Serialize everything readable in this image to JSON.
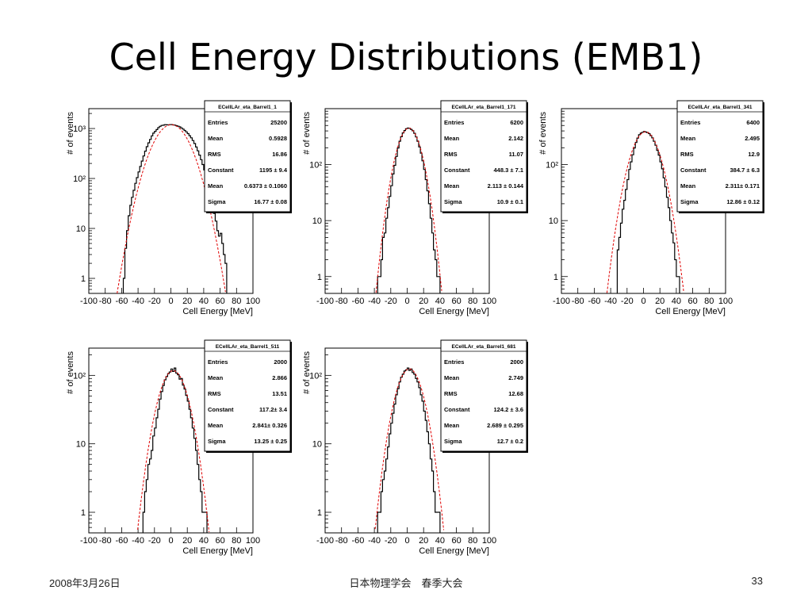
{
  "slide": {
    "title": "Cell Energy Distributions (EMB1)",
    "footer_date": "2008年3月26日",
    "footer_center": "日本物理学会　春季大会",
    "page_number": "33"
  },
  "chart_data": [
    {
      "type": "histogram",
      "name": "ECellLAr_eta_Barrel1_1",
      "xlabel": "Cell Energy [MeV]",
      "ylabel": "# of events",
      "xlim": [
        -100,
        100
      ],
      "ylim": [
        0.5,
        2500
      ],
      "yscale": "log",
      "xticks": [
        "-100",
        "-80",
        "-60",
        "-40",
        "-20",
        "0",
        "20",
        "40",
        "60",
        "80",
        "100"
      ],
      "yticks": [
        {
          "label": "1",
          "value": 1
        },
        {
          "label": "10",
          "value": 10
        },
        {
          "label": "10²",
          "value": 100
        },
        {
          "label": "10³",
          "value": 1000
        }
      ],
      "stats": [
        [
          "Entries",
          "25200"
        ],
        [
          "Mean",
          "0.5928"
        ],
        [
          "RMS",
          "16.86"
        ],
        [
          "Constant",
          "1195 ± 9.4"
        ],
        [
          "Mean",
          "0.6373 ± 0.1060"
        ],
        [
          "Sigma",
          "16.77 ± 0.08"
        ]
      ],
      "fit": {
        "constant": 1195,
        "mean": 0.6373,
        "sigma": 16.77
      },
      "x": [
        -57,
        -55,
        -53,
        -51,
        -49,
        -47,
        -45,
        -43,
        -41,
        -39,
        -37,
        -35,
        -33,
        -31,
        -29,
        -27,
        -25,
        -23,
        -21,
        -19,
        -17,
        -15,
        -13,
        -11,
        -9,
        -7,
        -5,
        -3,
        -1,
        1,
        3,
        5,
        7,
        9,
        11,
        13,
        15,
        17,
        19,
        21,
        23,
        25,
        27,
        29,
        31,
        33,
        35,
        37,
        39,
        41,
        43,
        45,
        47,
        49,
        51,
        53,
        55,
        57,
        59,
        61,
        63,
        65,
        67
      ],
      "values": [
        1,
        4,
        9,
        18,
        29,
        42,
        58,
        80,
        104,
        135,
        174,
        223,
        282,
        352,
        432,
        518,
        606,
        714,
        808,
        880,
        952,
        1040,
        1108,
        1150,
        1166,
        1196,
        1188,
        1182,
        1196,
        1200,
        1180,
        1168,
        1140,
        1110,
        1078,
        1030,
        975,
        916,
        856,
        790,
        720,
        651,
        576,
        500,
        426,
        358,
        294,
        238,
        190,
        148,
        112,
        83,
        60,
        42,
        29,
        20,
        14,
        9,
        7,
        8,
        5,
        3,
        2
      ]
    },
    {
      "type": "histogram",
      "name": "ECellLAr_eta_Barrel1_171",
      "xlabel": "Cell Energy [MeV]",
      "ylabel": "# of events",
      "xlim": [
        -100,
        100
      ],
      "ylim": [
        0.5,
        1000
      ],
      "yscale": "log",
      "xticks": [
        "-100",
        "-80",
        "-60",
        "-40",
        "-20",
        "0",
        "20",
        "40",
        "60",
        "80",
        "100"
      ],
      "yticks": [
        {
          "label": "1",
          "value": 1
        },
        {
          "label": "10",
          "value": 10
        },
        {
          "label": "10²",
          "value": 100
        }
      ],
      "stats": [
        [
          "Entries",
          "6200"
        ],
        [
          "Mean",
          "2.142"
        ],
        [
          "RMS",
          "11.07"
        ],
        [
          "Constant",
          "448.3 ± 7.1"
        ],
        [
          "Mean",
          "2.113 ± 0.144"
        ],
        [
          "Sigma",
          "10.9 ± 0.1"
        ]
      ],
      "fit": {
        "constant": 448.3,
        "mean": 2.113,
        "sigma": 10.9
      },
      "x": [
        -35,
        -33,
        -31,
        -29,
        -27,
        -25,
        -23,
        -21,
        -19,
        -17,
        -15,
        -13,
        -11,
        -9,
        -7,
        -5,
        -3,
        -1,
        1,
        3,
        5,
        7,
        9,
        11,
        13,
        15,
        17,
        19,
        21,
        23,
        25,
        27,
        29,
        31,
        33,
        35,
        37,
        39
      ],
      "values": [
        1,
        1,
        2,
        5,
        6,
        11,
        17,
        27,
        42,
        68,
        97,
        140,
        198,
        262,
        315,
        368,
        406,
        436,
        450,
        444,
        425,
        402,
        362,
        312,
        262,
        207,
        160,
        117,
        82,
        54,
        34,
        20,
        11,
        6,
        3,
        2,
        1,
        1
      ]
    },
    {
      "type": "histogram",
      "name": "ECellLAr_eta_Barrel1_341",
      "xlabel": "Cell Energy [MeV]",
      "ylabel": "# of events",
      "xlim": [
        -100,
        100
      ],
      "ylim": [
        0.5,
        1000
      ],
      "yscale": "log",
      "xticks": [
        "-100",
        "-80",
        "-60",
        "-40",
        "-20",
        "0",
        "20",
        "40",
        "60",
        "80",
        "100"
      ],
      "yticks": [
        {
          "label": "1",
          "value": 1
        },
        {
          "label": "10",
          "value": 10
        },
        {
          "label": "10²",
          "value": 100
        }
      ],
      "stats": [
        [
          "Entries",
          "6400"
        ],
        [
          "Mean",
          "2.495"
        ],
        [
          "RMS",
          "12.9"
        ],
        [
          "Constant",
          "384.7 ± 6.3"
        ],
        [
          "Mean",
          "2.311± 0.171"
        ],
        [
          "Sigma",
          "12.86 ± 0.12"
        ]
      ],
      "fit": {
        "constant": 384.7,
        "mean": 2.311,
        "sigma": 12.86
      },
      "x": [
        -31,
        -29,
        -27,
        -25,
        -23,
        -21,
        -19,
        -17,
        -15,
        -13,
        -11,
        -9,
        -7,
        -5,
        -3,
        -1,
        1,
        3,
        5,
        7,
        9,
        11,
        13,
        15,
        17,
        19,
        21,
        23,
        25,
        27,
        29,
        31,
        33,
        35,
        37,
        39,
        41,
        43
      ],
      "values": [
        3,
        5,
        9,
        16,
        23,
        36,
        54,
        82,
        112,
        150,
        198,
        248,
        298,
        342,
        366,
        378,
        390,
        382,
        374,
        358,
        330,
        300,
        262,
        222,
        180,
        148,
        112,
        84,
        58,
        40,
        26,
        17,
        10,
        6,
        4,
        2,
        1,
        1
      ]
    },
    {
      "type": "histogram",
      "name": "ECellLAr_eta_Barrel1_511",
      "xlabel": "Cell Energy [MeV]",
      "ylabel": "# of events",
      "xlim": [
        -100,
        100
      ],
      "ylim": [
        0.5,
        250
      ],
      "yscale": "log",
      "xticks": [
        "-100",
        "-80",
        "-60",
        "-40",
        "-20",
        "0",
        "20",
        "40",
        "60",
        "80",
        "100"
      ],
      "yticks": [
        {
          "label": "1",
          "value": 1
        },
        {
          "label": "10",
          "value": 10
        },
        {
          "label": "10²",
          "value": 100
        }
      ],
      "stats": [
        [
          "Entries",
          "2000"
        ],
        [
          "Mean",
          "2.866"
        ],
        [
          "RMS",
          "13.51"
        ],
        [
          "Constant",
          "117.2± 3.4"
        ],
        [
          "Mean",
          "2.841± 0.326"
        ],
        [
          "Sigma",
          "13.25 ± 0.25"
        ]
      ],
      "fit": {
        "constant": 117.2,
        "mean": 2.841,
        "sigma": 13.25
      },
      "x": [
        -33,
        -31,
        -29,
        -27,
        -25,
        -23,
        -21,
        -19,
        -17,
        -15,
        -13,
        -11,
        -9,
        -7,
        -5,
        -3,
        -1,
        1,
        3,
        5,
        7,
        9,
        11,
        13,
        15,
        17,
        19,
        21,
        23,
        25,
        27,
        29,
        31,
        33,
        35,
        37,
        39,
        41,
        43
      ],
      "values": [
        1,
        2,
        3,
        5,
        6,
        8,
        13,
        17,
        24,
        32,
        45,
        58,
        71,
        86,
        96,
        106,
        112,
        124,
        114,
        128,
        108,
        102,
        88,
        90,
        72,
        63,
        51,
        42,
        32,
        24,
        17,
        12,
        8,
        5,
        3,
        2,
        1,
        1,
        1
      ]
    },
    {
      "type": "histogram",
      "name": "ECellLAr_eta_Barrel1_681",
      "xlabel": "Cell Energy [MeV]",
      "ylabel": "# of events",
      "xlim": [
        -100,
        100
      ],
      "ylim": [
        0.5,
        250
      ],
      "yscale": "log",
      "xticks": [
        "-100",
        "-80",
        "-60",
        "-40",
        "-20",
        "0",
        "20",
        "40",
        "60",
        "80",
        "100"
      ],
      "yticks": [
        {
          "label": "1",
          "value": 1
        },
        {
          "label": "10",
          "value": 10
        },
        {
          "label": "10²",
          "value": 100
        }
      ],
      "stats": [
        [
          "Entries",
          "2000"
        ],
        [
          "Mean",
          "2.749"
        ],
        [
          "RMS",
          "12.68"
        ],
        [
          "Constant",
          "124.2 ± 3.6"
        ],
        [
          "Mean",
          "2.689 ± 0.295"
        ],
        [
          "Sigma",
          "12.7 ± 0.2"
        ]
      ],
      "fit": {
        "constant": 124.2,
        "mean": 2.689,
        "sigma": 12.7
      },
      "x": [
        -35,
        -33,
        -31,
        -29,
        -27,
        -25,
        -23,
        -21,
        -19,
        -17,
        -15,
        -13,
        -11,
        -9,
        -7,
        -5,
        -3,
        -1,
        1,
        3,
        5,
        7,
        9,
        11,
        13,
        15,
        17,
        19,
        21,
        23,
        25,
        27,
        29,
        31,
        33,
        35,
        37,
        39
      ],
      "values": [
        1,
        1,
        2,
        3,
        4,
        6,
        9,
        14,
        20,
        28,
        38,
        52,
        64,
        80,
        94,
        104,
        116,
        120,
        128,
        118,
        124,
        110,
        104,
        90,
        80,
        66,
        52,
        42,
        30,
        22,
        15,
        10,
        6,
        4,
        2,
        1,
        1,
        1
      ]
    }
  ]
}
